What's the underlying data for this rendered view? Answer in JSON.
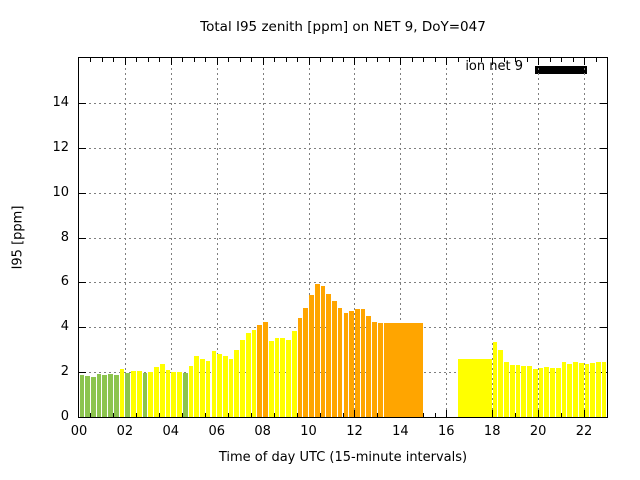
{
  "chart_data": {
    "type": "bar",
    "title": "Total I95 zenith [ppm] on NET 9, DoY=047",
    "xlabel": "Time of day UTC (15-minute intervals)",
    "ylabel": "I95 [ppm]",
    "legend": {
      "label": "ion net 9",
      "swatch_color": "#000000",
      "position": "top-right-inside"
    },
    "x_axis": {
      "range_hours": [
        0,
        23
      ],
      "major_tick_labels": [
        "00",
        "02",
        "04",
        "06",
        "08",
        "10",
        "12",
        "14",
        "16",
        "18",
        "20",
        "22"
      ],
      "major_tick_hours": [
        0,
        2,
        4,
        6,
        8,
        10,
        12,
        14,
        16,
        18,
        20,
        22
      ],
      "minor_tick_step_hours": 0.5
    },
    "y_axis": {
      "range": [
        0,
        16
      ],
      "tick_values": [
        0,
        2,
        4,
        6,
        8,
        10,
        12,
        14
      ]
    },
    "grid": "dashed-gray-at-major-ticks",
    "bar_interval_minutes": 15,
    "colors": {
      "green": "#8cc44e",
      "yellow": "#ffff00",
      "orange": "#ffa500",
      "grid": "#7f7f7f",
      "axis": "#000000"
    },
    "no_data_slots": [
      "15:00",
      "15:15",
      "15:30",
      "15:45",
      "16:00",
      "16:15"
    ],
    "bars": [
      {
        "t": "00:00",
        "v": 1.88,
        "c": "green"
      },
      {
        "t": "00:15",
        "v": 1.85,
        "c": "green"
      },
      {
        "t": "00:30",
        "v": 1.78,
        "c": "green"
      },
      {
        "t": "00:45",
        "v": 1.92,
        "c": "green"
      },
      {
        "t": "01:00",
        "v": 1.86,
        "c": "green"
      },
      {
        "t": "01:15",
        "v": 1.9,
        "c": "green"
      },
      {
        "t": "01:30",
        "v": 1.87,
        "c": "green"
      },
      {
        "t": "01:45",
        "v": 2.12,
        "c": "yellow"
      },
      {
        "t": "02:00",
        "v": 1.97,
        "c": "green"
      },
      {
        "t": "02:15",
        "v": 2.03,
        "c": "yellow"
      },
      {
        "t": "02:30",
        "v": 2.03,
        "c": "yellow"
      },
      {
        "t": "02:45",
        "v": 1.96,
        "c": "green"
      },
      {
        "t": "03:00",
        "v": 2.02,
        "c": "yellow"
      },
      {
        "t": "03:15",
        "v": 2.22,
        "c": "yellow"
      },
      {
        "t": "03:30",
        "v": 2.35,
        "c": "yellow"
      },
      {
        "t": "03:45",
        "v": 2.1,
        "c": "yellow"
      },
      {
        "t": "04:00",
        "v": 2.02,
        "c": "yellow"
      },
      {
        "t": "04:15",
        "v": 2.02,
        "c": "yellow"
      },
      {
        "t": "04:30",
        "v": 1.95,
        "c": "green"
      },
      {
        "t": "04:45",
        "v": 2.28,
        "c": "yellow"
      },
      {
        "t": "05:00",
        "v": 2.7,
        "c": "yellow"
      },
      {
        "t": "05:15",
        "v": 2.58,
        "c": "yellow"
      },
      {
        "t": "05:30",
        "v": 2.5,
        "c": "yellow"
      },
      {
        "t": "05:45",
        "v": 2.95,
        "c": "yellow"
      },
      {
        "t": "06:00",
        "v": 2.8,
        "c": "yellow"
      },
      {
        "t": "06:15",
        "v": 2.72,
        "c": "yellow"
      },
      {
        "t": "06:30",
        "v": 2.6,
        "c": "yellow"
      },
      {
        "t": "06:45",
        "v": 2.98,
        "c": "yellow"
      },
      {
        "t": "07:00",
        "v": 3.45,
        "c": "yellow"
      },
      {
        "t": "07:15",
        "v": 3.75,
        "c": "yellow"
      },
      {
        "t": "07:30",
        "v": 3.88,
        "c": "yellow"
      },
      {
        "t": "07:45",
        "v": 4.12,
        "c": "orange"
      },
      {
        "t": "08:00",
        "v": 4.22,
        "c": "orange"
      },
      {
        "t": "08:15",
        "v": 3.4,
        "c": "yellow"
      },
      {
        "t": "08:30",
        "v": 3.5,
        "c": "yellow"
      },
      {
        "t": "08:45",
        "v": 3.5,
        "c": "yellow"
      },
      {
        "t": "09:00",
        "v": 3.45,
        "c": "yellow"
      },
      {
        "t": "09:15",
        "v": 3.85,
        "c": "yellow"
      },
      {
        "t": "09:30",
        "v": 4.4,
        "c": "orange"
      },
      {
        "t": "09:45",
        "v": 4.88,
        "c": "orange"
      },
      {
        "t": "10:00",
        "v": 5.42,
        "c": "orange"
      },
      {
        "t": "10:15",
        "v": 5.92,
        "c": "orange"
      },
      {
        "t": "10:30",
        "v": 5.85,
        "c": "orange"
      },
      {
        "t": "10:45",
        "v": 5.48,
        "c": "orange"
      },
      {
        "t": "11:00",
        "v": 5.18,
        "c": "orange"
      },
      {
        "t": "11:15",
        "v": 4.85,
        "c": "orange"
      },
      {
        "t": "11:30",
        "v": 4.62,
        "c": "orange"
      },
      {
        "t": "11:45",
        "v": 4.73,
        "c": "orange"
      },
      {
        "t": "12:00",
        "v": 4.8,
        "c": "orange"
      },
      {
        "t": "12:15",
        "v": 4.83,
        "c": "orange"
      },
      {
        "t": "12:30",
        "v": 4.52,
        "c": "orange"
      },
      {
        "t": "12:45",
        "v": 4.22,
        "c": "orange"
      },
      {
        "t": "13:00",
        "v": 4.18,
        "c": "orange"
      },
      {
        "t": "13:15",
        "v": 4.2,
        "c": "orange",
        "m": true
      },
      {
        "t": "13:30",
        "v": 4.2,
        "c": "orange",
        "m": true
      },
      {
        "t": "13:45",
        "v": 4.2,
        "c": "orange",
        "m": true
      },
      {
        "t": "14:00",
        "v": 4.2,
        "c": "orange",
        "m": true
      },
      {
        "t": "14:15",
        "v": 4.2,
        "c": "orange",
        "m": true
      },
      {
        "t": "14:30",
        "v": 4.2,
        "c": "orange",
        "m": true
      },
      {
        "t": "14:45",
        "v": 4.2,
        "c": "orange"
      },
      {
        "t": "16:30",
        "v": 2.58,
        "c": "yellow",
        "m": true
      },
      {
        "t": "16:45",
        "v": 2.58,
        "c": "yellow",
        "m": true
      },
      {
        "t": "17:00",
        "v": 2.58,
        "c": "yellow",
        "m": true
      },
      {
        "t": "17:15",
        "v": 2.58,
        "c": "yellow",
        "m": true
      },
      {
        "t": "17:30",
        "v": 2.58,
        "c": "yellow",
        "m": true
      },
      {
        "t": "17:45",
        "v": 2.58,
        "c": "yellow"
      },
      {
        "t": "18:00",
        "v": 3.35,
        "c": "yellow"
      },
      {
        "t": "18:15",
        "v": 2.98,
        "c": "yellow"
      },
      {
        "t": "18:30",
        "v": 2.47,
        "c": "yellow"
      },
      {
        "t": "18:45",
        "v": 2.33,
        "c": "yellow"
      },
      {
        "t": "19:00",
        "v": 2.33,
        "c": "yellow"
      },
      {
        "t": "19:15",
        "v": 2.29,
        "c": "yellow"
      },
      {
        "t": "19:30",
        "v": 2.26,
        "c": "yellow"
      },
      {
        "t": "19:45",
        "v": 2.12,
        "c": "yellow"
      },
      {
        "t": "20:00",
        "v": 2.19,
        "c": "yellow"
      },
      {
        "t": "20:15",
        "v": 2.25,
        "c": "yellow"
      },
      {
        "t": "20:30",
        "v": 2.19,
        "c": "yellow"
      },
      {
        "t": "20:45",
        "v": 2.19,
        "c": "yellow"
      },
      {
        "t": "21:00",
        "v": 2.44,
        "c": "yellow"
      },
      {
        "t": "21:15",
        "v": 2.37,
        "c": "yellow"
      },
      {
        "t": "21:30",
        "v": 2.47,
        "c": "yellow"
      },
      {
        "t": "21:45",
        "v": 2.4,
        "c": "yellow"
      },
      {
        "t": "22:00",
        "v": 2.37,
        "c": "yellow"
      },
      {
        "t": "22:15",
        "v": 2.4,
        "c": "yellow"
      },
      {
        "t": "22:30",
        "v": 2.44,
        "c": "yellow"
      },
      {
        "t": "22:45",
        "v": 2.44,
        "c": "yellow"
      }
    ]
  }
}
